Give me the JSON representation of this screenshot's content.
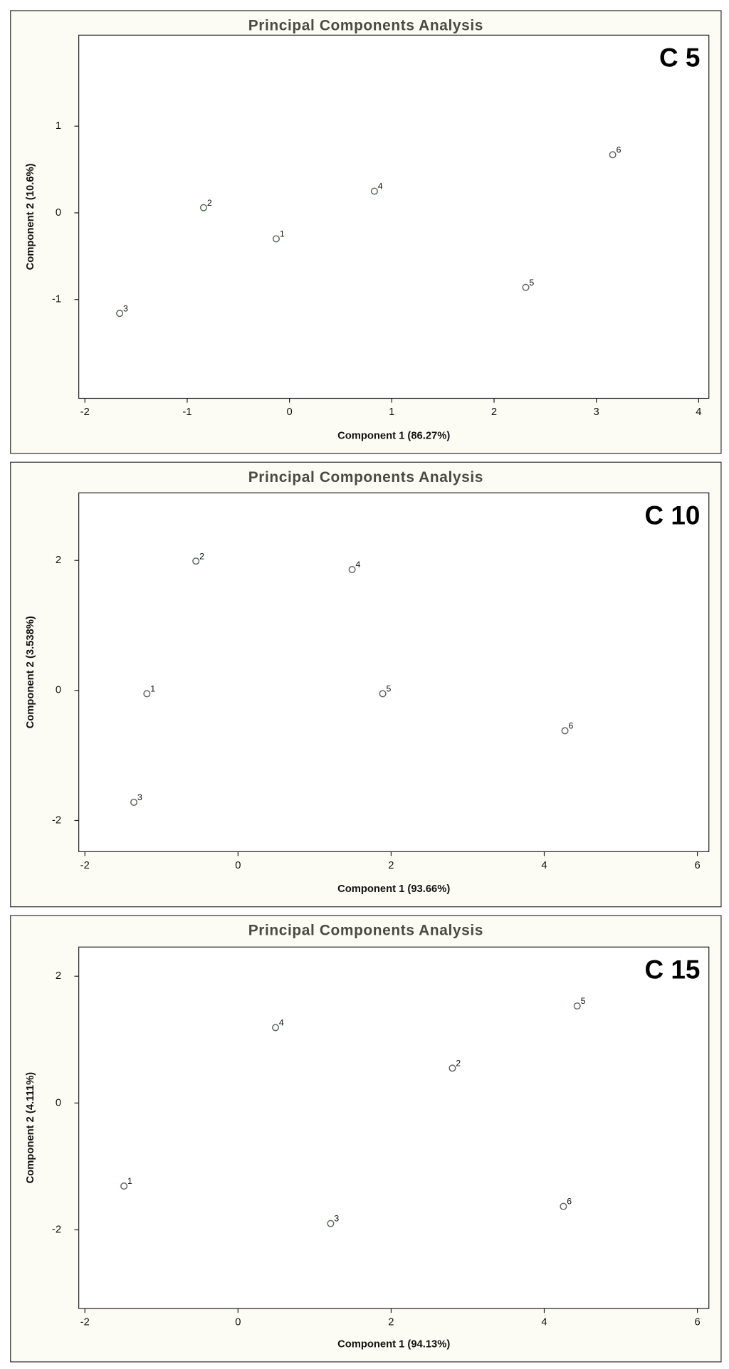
{
  "chart_data": [
    {
      "type": "scatter",
      "title": "Principal Components Analysis",
      "annotation": "C 5",
      "x_label": "Component 1 (86.27%)",
      "y_label": "Component 2 (10.6%)",
      "x": [
        -0.13,
        -0.84,
        -1.66,
        0.83,
        2.31,
        3.16
      ],
      "y": [
        -0.3,
        0.06,
        -1.16,
        0.25,
        -0.86,
        0.67
      ],
      "labels": [
        "1",
        "2",
        "3",
        "4",
        "5",
        "6"
      ],
      "color": "#5a6a5a",
      "xlim": [
        -2.06,
        4.1
      ],
      "ylim": [
        -2.14,
        2.05
      ],
      "xticks": [
        -2,
        -1,
        0,
        1,
        2,
        3,
        4
      ],
      "yticks": [
        -1,
        0,
        1
      ]
    },
    {
      "type": "scatter",
      "title": "Principal Components Analysis",
      "annotation": "C 10",
      "x_label": "Component 1 (93.66%)",
      "y_label": "Component 2 (3.538%)",
      "x": [
        -1.19,
        -0.55,
        -1.36,
        1.49,
        1.89,
        4.27
      ],
      "y": [
        -0.05,
        1.99,
        -1.72,
        1.86,
        -0.05,
        -0.62
      ],
      "labels": [
        "1",
        "2",
        "3",
        "4",
        "5",
        "6"
      ],
      "color": "#5a6a5a",
      "xlim": [
        -2.08,
        6.15
      ],
      "ylim": [
        -2.48,
        3.04
      ],
      "xticks": [
        -2,
        0,
        2,
        4,
        6
      ],
      "yticks": [
        -2,
        0,
        2
      ]
    },
    {
      "type": "scatter",
      "title": "Principal Components Analysis",
      "annotation": "C 15",
      "x_label": "Component 1 (94.13%)",
      "y_label": "Component 2 (4.111%)",
      "x": [
        -1.49,
        2.8,
        1.21,
        0.49,
        4.43,
        4.25
      ],
      "y": [
        -1.31,
        0.55,
        -1.9,
        1.19,
        1.53,
        -1.63
      ],
      "labels": [
        "1",
        "2",
        "3",
        "4",
        "5",
        "6"
      ],
      "color": "#5a6a5a",
      "xlim": [
        -2.08,
        6.15
      ],
      "ylim": [
        -3.24,
        2.46
      ],
      "xticks": [
        -2,
        0,
        2,
        4,
        6
      ],
      "yticks": [
        -2,
        0,
        2
      ]
    }
  ]
}
